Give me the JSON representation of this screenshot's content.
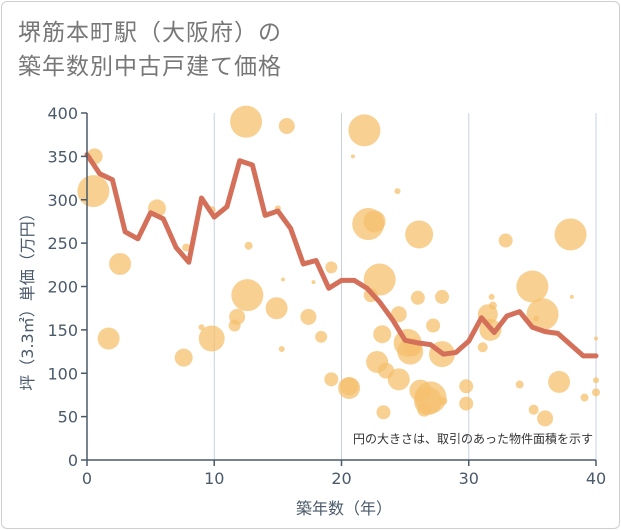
{
  "title_line1": "堺筋本町駅（大阪府）の",
  "title_line2": "築年数別中古戸建て価格",
  "note": "円の大きさは、取引のあった物件面積を示す",
  "colors": {
    "line": "#d4705a",
    "bubble": "#f5c06e",
    "grid": "#c8d0e0",
    "axis": "#4a5a6a"
  },
  "chart_data": {
    "type": "scatter",
    "title": "堺筋本町駅（大阪府）の 築年数別中古戸建て価格",
    "xlabel": "築年数（年）",
    "ylabel": "坪（3.3㎡）単価（万円）",
    "xlim": [
      0,
      40
    ],
    "ylim": [
      0,
      400
    ],
    "xticks": [
      0,
      10,
      20,
      30,
      40
    ],
    "yticks": [
      0,
      50,
      100,
      150,
      200,
      250,
      300,
      350,
      400
    ],
    "grid": "vertical",
    "line": {
      "x": [
        0,
        1,
        2,
        3,
        4,
        5,
        6,
        7,
        8,
        9,
        10,
        11,
        12,
        13,
        14,
        15,
        16,
        17,
        18,
        19,
        20,
        21,
        22,
        23,
        24,
        25,
        26,
        27,
        28,
        29,
        30,
        31,
        32,
        33,
        34,
        35,
        36,
        37,
        38,
        39,
        40
      ],
      "y": [
        352,
        330,
        323,
        263,
        255,
        285,
        278,
        245,
        228,
        302,
        280,
        292,
        345,
        340,
        282,
        287,
        267,
        226,
        230,
        198,
        207,
        207,
        198,
        182,
        162,
        138,
        135,
        133,
        122,
        124,
        137,
        164,
        147,
        166,
        171,
        153,
        148,
        146,
        133,
        120,
        120
      ]
    },
    "points": [
      {
        "x": 0.5,
        "y": 310,
        "s": 16
      },
      {
        "x": 0.6,
        "y": 350,
        "s": 8
      },
      {
        "x": 1.7,
        "y": 140,
        "s": 11
      },
      {
        "x": 2.6,
        "y": 226,
        "s": 11
      },
      {
        "x": 5.5,
        "y": 290,
        "s": 9
      },
      {
        "x": 7.6,
        "y": 118,
        "s": 9
      },
      {
        "x": 7.8,
        "y": 245,
        "s": 4
      },
      {
        "x": 9,
        "y": 153,
        "s": 3
      },
      {
        "x": 9.8,
        "y": 140,
        "s": 13
      },
      {
        "x": 9.8,
        "y": 288,
        "s": 4
      },
      {
        "x": 11.6,
        "y": 155,
        "s": 6
      },
      {
        "x": 11.8,
        "y": 165,
        "s": 8
      },
      {
        "x": 12.5,
        "y": 390,
        "s": 16
      },
      {
        "x": 12.6,
        "y": 190,
        "s": 16
      },
      {
        "x": 12.7,
        "y": 247,
        "s": 4
      },
      {
        "x": 15,
        "y": 290,
        "s": 3
      },
      {
        "x": 15.7,
        "y": 385,
        "s": 8
      },
      {
        "x": 14.9,
        "y": 175,
        "s": 11
      },
      {
        "x": 15.3,
        "y": 128,
        "s": 3
      },
      {
        "x": 15.4,
        "y": 208,
        "s": 2
      },
      {
        "x": 17.4,
        "y": 165,
        "s": 8
      },
      {
        "x": 17.8,
        "y": 205,
        "s": 2
      },
      {
        "x": 18.4,
        "y": 142,
        "s": 6
      },
      {
        "x": 19.2,
        "y": 222,
        "s": 6
      },
      {
        "x": 19.2,
        "y": 93,
        "s": 7
      },
      {
        "x": 20.6,
        "y": 83,
        "s": 11
      },
      {
        "x": 20.6,
        "y": 85,
        "s": 9
      },
      {
        "x": 20.9,
        "y": 350,
        "s": 2
      },
      {
        "x": 21.8,
        "y": 380,
        "s": 16
      },
      {
        "x": 22.1,
        "y": 272,
        "s": 16
      },
      {
        "x": 22.3,
        "y": 190,
        "s": 7
      },
      {
        "x": 22.6,
        "y": 275,
        "s": 11
      },
      {
        "x": 23,
        "y": 208,
        "s": 16
      },
      {
        "x": 23.2,
        "y": 145,
        "s": 9
      },
      {
        "x": 22.8,
        "y": 113,
        "s": 11
      },
      {
        "x": 23.5,
        "y": 103,
        "s": 8
      },
      {
        "x": 23.3,
        "y": 55,
        "s": 7
      },
      {
        "x": 24.4,
        "y": 310,
        "s": 3
      },
      {
        "x": 24.5,
        "y": 168,
        "s": 8
      },
      {
        "x": 24.5,
        "y": 93,
        "s": 11
      },
      {
        "x": 25.2,
        "y": 135,
        "s": 14
      },
      {
        "x": 25.4,
        "y": 125,
        "s": 13
      },
      {
        "x": 25.6,
        "y": 130,
        "s": 9
      },
      {
        "x": 26.1,
        "y": 260,
        "s": 14
      },
      {
        "x": 26,
        "y": 187,
        "s": 7
      },
      {
        "x": 26.2,
        "y": 80,
        "s": 11
      },
      {
        "x": 26.5,
        "y": 58,
        "s": 7
      },
      {
        "x": 26.8,
        "y": 68,
        "s": 14
      },
      {
        "x": 27,
        "y": 72,
        "s": 16
      },
      {
        "x": 27.2,
        "y": 155,
        "s": 7
      },
      {
        "x": 27.9,
        "y": 122,
        "s": 13
      },
      {
        "x": 27.9,
        "y": 188,
        "s": 7
      },
      {
        "x": 28,
        "y": 68,
        "s": 4
      },
      {
        "x": 29.8,
        "y": 85,
        "s": 7
      },
      {
        "x": 29.8,
        "y": 65,
        "s": 7
      },
      {
        "x": 31.1,
        "y": 130,
        "s": 5
      },
      {
        "x": 31.5,
        "y": 168,
        "s": 10
      },
      {
        "x": 31.7,
        "y": 150,
        "s": 11
      },
      {
        "x": 31.8,
        "y": 188,
        "s": 3
      },
      {
        "x": 31.9,
        "y": 178,
        "s": 4
      },
      {
        "x": 32.9,
        "y": 253,
        "s": 7
      },
      {
        "x": 34,
        "y": 87,
        "s": 4
      },
      {
        "x": 35,
        "y": 200,
        "s": 16
      },
      {
        "x": 35.1,
        "y": 58,
        "s": 5
      },
      {
        "x": 35.3,
        "y": 163,
        "s": 3
      },
      {
        "x": 35.8,
        "y": 168,
        "s": 16
      },
      {
        "x": 36,
        "y": 48,
        "s": 8
      },
      {
        "x": 37.1,
        "y": 90,
        "s": 11
      },
      {
        "x": 38,
        "y": 260,
        "s": 16
      },
      {
        "x": 38.1,
        "y": 188,
        "s": 2
      },
      {
        "x": 39.1,
        "y": 72,
        "s": 4
      },
      {
        "x": 40,
        "y": 140,
        "s": 2
      },
      {
        "x": 40,
        "y": 92,
        "s": 3
      },
      {
        "x": 40,
        "y": 78,
        "s": 4
      }
    ]
  }
}
